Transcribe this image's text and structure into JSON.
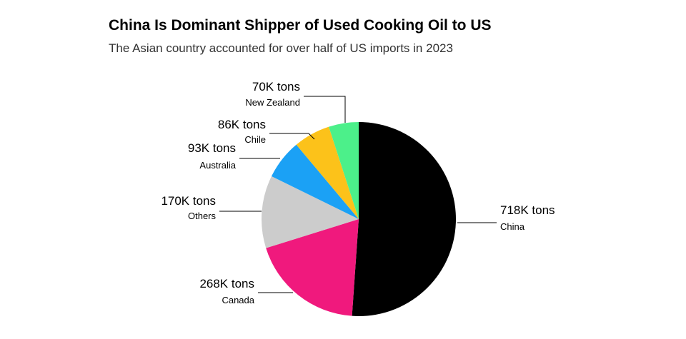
{
  "chart_data": {
    "type": "pie",
    "title": "China Is Dominant Shipper of Used Cooking Oil to US",
    "subtitle": "The Asian country accounted for over half of US imports in 2023",
    "categories": [
      "China",
      "Canada",
      "Others",
      "Australia",
      "Chile",
      "New Zealand"
    ],
    "values": [
      718000,
      268000,
      170000,
      93000,
      86000,
      70000
    ],
    "value_labels": [
      "718K tons",
      "268K tons",
      "170K tons",
      "93K tons",
      "86K tons",
      "70K tons"
    ],
    "colors": [
      "#000000",
      "#f0197d",
      "#cccccc",
      "#1ba1f5",
      "#fcc21a",
      "#4cf08a"
    ]
  }
}
